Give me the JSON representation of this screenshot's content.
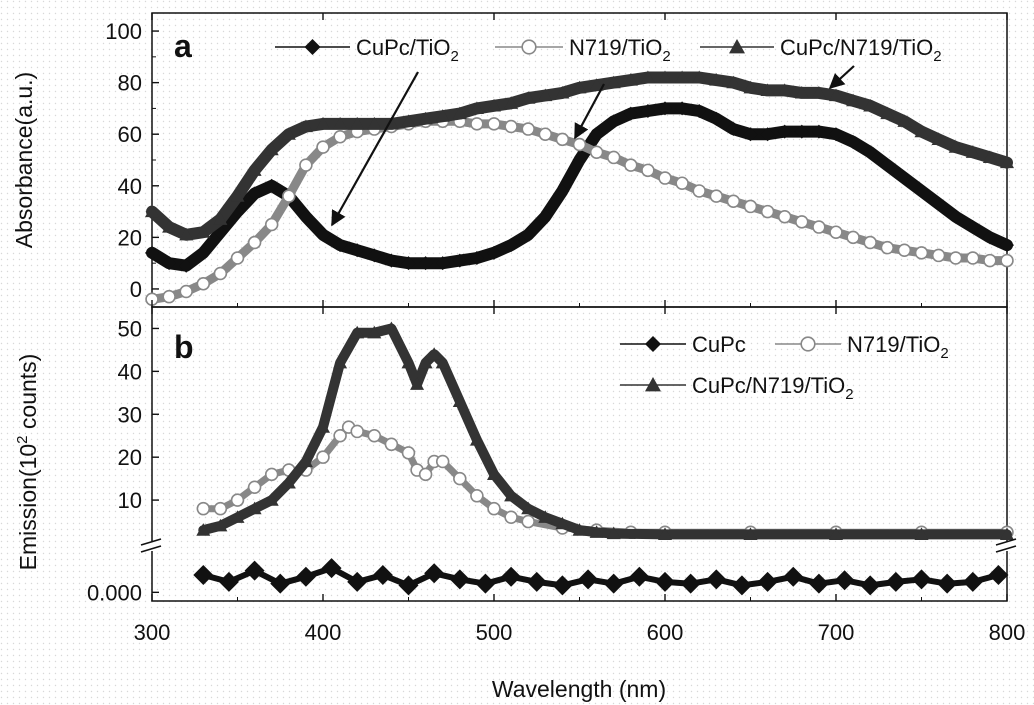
{
  "chart_data": [
    {
      "panel_label": "a",
      "type": "line",
      "xlabel": "Wavelength (nm)",
      "ylabel": "Absorbance(a.u.)",
      "xlim": [
        300,
        800
      ],
      "ylim": [
        -7,
        107
      ],
      "xticks": [
        "300",
        "400",
        "500",
        "600",
        "700",
        "800"
      ],
      "yticks": [
        "0",
        "20",
        "40",
        "60",
        "80",
        "100"
      ],
      "legend_position": "top",
      "series": [
        {
          "name": "CuPc/TiO",
          "sub": "2",
          "marker": "diamond",
          "color": "#111111",
          "x": [
            300,
            310,
            320,
            330,
            340,
            350,
            360,
            370,
            380,
            390,
            400,
            410,
            420,
            430,
            440,
            450,
            460,
            470,
            480,
            490,
            500,
            510,
            520,
            530,
            540,
            550,
            560,
            570,
            580,
            590,
            600,
            610,
            620,
            630,
            640,
            650,
            660,
            670,
            680,
            690,
            700,
            710,
            720,
            730,
            740,
            750,
            760,
            770,
            780,
            790,
            800
          ],
          "y": [
            14,
            10,
            9,
            14,
            22,
            30,
            37,
            40,
            36,
            28,
            21,
            17,
            15,
            13,
            11,
            10,
            10,
            10,
            11,
            12,
            14,
            17,
            21,
            28,
            38,
            50,
            60,
            65,
            68,
            69,
            70,
            70,
            69,
            66,
            62,
            60,
            60,
            61,
            61,
            61,
            60,
            57,
            53,
            48,
            43,
            38,
            33,
            28,
            24,
            20,
            17
          ]
        },
        {
          "name": "N719/TiO",
          "sub": "2",
          "marker": "circle",
          "color": "#888888",
          "x": [
            300,
            310,
            320,
            330,
            340,
            350,
            360,
            370,
            380,
            390,
            400,
            410,
            420,
            430,
            440,
            450,
            460,
            470,
            480,
            490,
            500,
            510,
            520,
            530,
            540,
            550,
            560,
            570,
            580,
            590,
            600,
            610,
            620,
            630,
            640,
            650,
            660,
            670,
            680,
            690,
            700,
            710,
            720,
            730,
            740,
            750,
            760,
            770,
            780,
            790,
            800
          ],
          "y": [
            -4,
            -3,
            -1,
            2,
            6,
            12,
            18,
            25,
            36,
            48,
            55,
            59,
            61,
            62,
            63,
            64,
            65,
            65,
            65,
            64,
            64,
            63,
            62,
            60,
            58,
            56,
            53,
            51,
            48,
            46,
            43,
            41,
            38,
            36,
            34,
            32,
            30,
            28,
            26,
            24,
            22,
            20,
            18,
            16,
            15,
            14,
            13,
            12,
            12,
            11,
            11
          ]
        },
        {
          "name": "CuPc/N719/TiO",
          "sub": "2",
          "marker": "triangle",
          "color": "#333333",
          "x": [
            300,
            310,
            320,
            330,
            340,
            350,
            360,
            370,
            380,
            390,
            400,
            410,
            420,
            430,
            440,
            450,
            460,
            470,
            480,
            490,
            500,
            510,
            520,
            530,
            540,
            550,
            560,
            570,
            580,
            590,
            600,
            610,
            620,
            630,
            640,
            650,
            660,
            670,
            680,
            690,
            700,
            710,
            720,
            730,
            740,
            750,
            760,
            770,
            780,
            790,
            800
          ],
          "y": [
            30,
            24,
            21,
            22,
            27,
            36,
            46,
            54,
            60,
            63,
            64,
            64,
            64,
            64,
            64,
            65,
            66,
            67,
            68,
            70,
            71,
            72,
            74,
            75,
            76,
            78,
            79,
            80,
            81,
            82,
            82,
            82,
            82,
            81,
            80,
            78,
            77,
            77,
            76,
            76,
            75,
            73,
            71,
            68,
            65,
            61,
            58,
            55,
            53,
            51,
            49
          ]
        }
      ],
      "annotation_arrows": 3
    },
    {
      "panel_label": "b",
      "type": "line",
      "xlabel": "Wavelength (nm)",
      "ylabel_prefix": "Emission(10",
      "ylabel_sup": "2",
      "ylabel_suffix": " counts)",
      "xlim": [
        300,
        800
      ],
      "ylim_upper": [
        0,
        55
      ],
      "ylim_lower": [
        -0.1,
        0.5
      ],
      "axis_break": true,
      "xticks": [
        "300",
        "400",
        "500",
        "600",
        "700",
        "800"
      ],
      "yticks_upper": [
        "10",
        "20",
        "30",
        "40",
        "50"
      ],
      "yticks_lower": [
        "0.000"
      ],
      "legend_position": "top-right",
      "series": [
        {
          "name": "CuPc",
          "sub": "",
          "marker": "diamond",
          "color": "#111111",
          "axis": "lower",
          "x": [
            330,
            345,
            360,
            375,
            390,
            405,
            420,
            435,
            450,
            465,
            480,
            495,
            510,
            525,
            540,
            555,
            570,
            585,
            600,
            615,
            630,
            645,
            660,
            675,
            690,
            705,
            720,
            735,
            750,
            765,
            780,
            795
          ],
          "y": [
            0.2,
            0.12,
            0.25,
            0.1,
            0.18,
            0.28,
            0.12,
            0.2,
            0.08,
            0.22,
            0.15,
            0.1,
            0.18,
            0.12,
            0.08,
            0.15,
            0.1,
            0.18,
            0.12,
            0.1,
            0.15,
            0.08,
            0.12,
            0.18,
            0.1,
            0.14,
            0.08,
            0.12,
            0.15,
            0.1,
            0.12,
            0.2
          ]
        },
        {
          "name": "N719/TiO",
          "sub": "2",
          "marker": "circle",
          "color": "#888888",
          "axis": "upper",
          "x": [
            330,
            340,
            350,
            360,
            370,
            380,
            390,
            400,
            410,
            415,
            420,
            430,
            440,
            450,
            455,
            460,
            465,
            470,
            480,
            490,
            500,
            510,
            520,
            540,
            560,
            580,
            600,
            650,
            700,
            750,
            800
          ],
          "y": [
            8,
            8,
            10,
            13,
            16,
            17,
            17,
            20,
            25,
            27,
            26,
            25,
            23,
            21,
            17,
            16,
            19,
            19,
            15,
            11,
            8,
            6,
            5,
            3.5,
            3,
            2.5,
            2.5,
            2.5,
            2.5,
            2.5,
            2.5
          ]
        },
        {
          "name": "CuPc/N719/TiO",
          "sub": "2",
          "marker": "triangle",
          "color": "#333333",
          "axis": "upper",
          "x": [
            330,
            340,
            350,
            360,
            370,
            380,
            390,
            400,
            410,
            420,
            430,
            440,
            450,
            455,
            460,
            465,
            470,
            480,
            490,
            500,
            510,
            520,
            530,
            540,
            550,
            560,
            570,
            600,
            650,
            700,
            750,
            800
          ],
          "y": [
            3,
            4,
            6,
            8,
            10,
            14,
            19,
            27,
            42,
            49,
            49,
            50,
            42,
            37,
            42,
            44,
            42,
            33,
            24,
            16,
            11,
            8,
            6,
            4.5,
            3,
            2.5,
            2.2,
            2,
            2,
            2,
            2,
            2
          ]
        }
      ]
    }
  ]
}
